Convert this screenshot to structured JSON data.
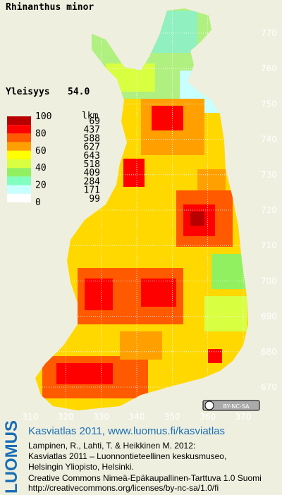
{
  "title": "Rhinanthus minor",
  "frequency": {
    "label": "Yleisyys",
    "value": "54.0"
  },
  "legend": {
    "scale_labels": [
      100,
      80,
      60,
      40,
      20,
      0
    ],
    "count_header": "lkm",
    "classes": [
      {
        "color": "#b80000",
        "count": 69
      },
      {
        "color": "#ff0000",
        "count": 437
      },
      {
        "color": "#ff5a00",
        "count": 588
      },
      {
        "color": "#ffa000",
        "count": 627
      },
      {
        "color": "#ffff00",
        "count": 643
      },
      {
        "color": "#d8ff40",
        "count": 518
      },
      {
        "color": "#90f060",
        "count": 409
      },
      {
        "color": "#80ffc0",
        "count": 284
      },
      {
        "color": "#c8ffff",
        "count": 171
      },
      {
        "color": "#ffffff",
        "count": 99
      }
    ]
  },
  "grid": {
    "yticks": [
      770,
      760,
      750,
      740,
      730,
      720,
      710,
      700,
      690,
      680,
      670
    ],
    "ylim": [
      770,
      670
    ],
    "xticks": [
      310,
      320,
      330,
      340,
      350,
      360,
      370
    ],
    "xlim": [
      310,
      370
    ]
  },
  "license_badge": "BY-NC-SA",
  "footer": {
    "logo": "LUOMUS",
    "heading": "Kasviatlas 2011, www.luomus.fi/kasviatlas",
    "citation": [
      "Lampinen, R., Lahti, T. & Heikkinen M. 2012:",
      "Kasviatlas 2011 – Luonnontieteellinen keskusmuseo,",
      "Helsingin Yliopisto, Helsinki."
    ],
    "license": [
      "Creative Commons Nimeä-Epäkaupallinen-Tarttuva 1.0 Suomi",
      "http://creativecommons.org/licenses/by-nc-sa/1.0/fi"
    ]
  }
}
